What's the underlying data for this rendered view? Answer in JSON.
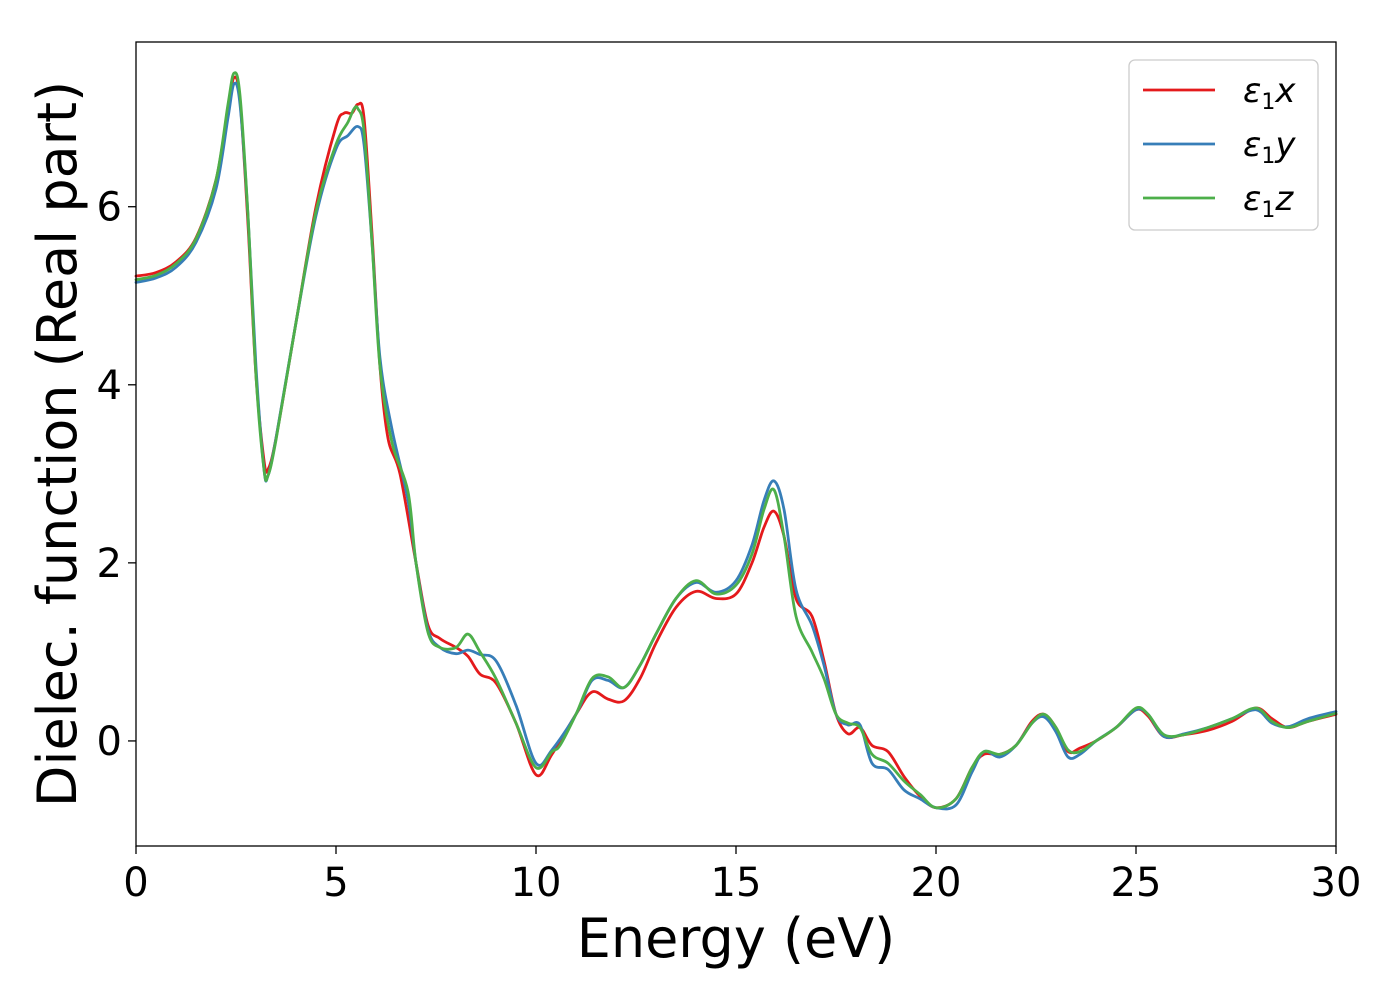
{
  "chart_data": {
    "type": "line",
    "title": "",
    "xlabel": "Energy (eV)",
    "ylabel": "Dielec. function (Real part)",
    "xlim": [
      0,
      30
    ],
    "ylim": [
      -1.18,
      7.85
    ],
    "xticks": [
      0,
      5,
      10,
      15,
      20,
      25,
      30
    ],
    "xtick_labels": [
      "0",
      "5",
      "10",
      "15",
      "20",
      "25",
      "30"
    ],
    "yticks": [
      0,
      2,
      4,
      6
    ],
    "ytick_labels": [
      "0",
      "2",
      "4",
      "6"
    ],
    "grid": false,
    "legend_position": "top-right",
    "series": [
      {
        "name": "ε1x",
        "legend_main": "ε",
        "legend_sub": "1",
        "legend_tail": "x",
        "color": "#e41a1c",
        "points": [
          [
            0,
            5.22
          ],
          [
            0.5,
            5.26
          ],
          [
            1.0,
            5.38
          ],
          [
            1.5,
            5.65
          ],
          [
            2.0,
            6.3
          ],
          [
            2.3,
            7.1
          ],
          [
            2.45,
            7.45
          ],
          [
            2.6,
            7.2
          ],
          [
            2.8,
            5.8
          ],
          [
            3.0,
            4.1
          ],
          [
            3.2,
            3.15
          ],
          [
            3.3,
            3.05
          ],
          [
            3.5,
            3.4
          ],
          [
            4.0,
            4.7
          ],
          [
            4.5,
            6.0
          ],
          [
            5.0,
            6.9
          ],
          [
            5.2,
            7.05
          ],
          [
            5.4,
            7.05
          ],
          [
            5.55,
            7.15
          ],
          [
            5.7,
            7.0
          ],
          [
            5.9,
            5.7
          ],
          [
            6.1,
            4.2
          ],
          [
            6.3,
            3.4
          ],
          [
            6.6,
            3.0
          ],
          [
            7.0,
            2.0
          ],
          [
            7.3,
            1.3
          ],
          [
            7.6,
            1.15
          ],
          [
            8.0,
            1.05
          ],
          [
            8.3,
            0.95
          ],
          [
            8.6,
            0.75
          ],
          [
            9.0,
            0.65
          ],
          [
            9.5,
            0.2
          ],
          [
            10.0,
            -0.38
          ],
          [
            10.4,
            -0.15
          ],
          [
            11.0,
            0.3
          ],
          [
            11.4,
            0.55
          ],
          [
            11.8,
            0.47
          ],
          [
            12.2,
            0.45
          ],
          [
            12.6,
            0.7
          ],
          [
            13.0,
            1.1
          ],
          [
            13.5,
            1.5
          ],
          [
            14.0,
            1.68
          ],
          [
            14.5,
            1.6
          ],
          [
            15.0,
            1.65
          ],
          [
            15.4,
            2.0
          ],
          [
            15.7,
            2.4
          ],
          [
            15.95,
            2.58
          ],
          [
            16.2,
            2.3
          ],
          [
            16.5,
            1.6
          ],
          [
            16.9,
            1.4
          ],
          [
            17.2,
            0.9
          ],
          [
            17.5,
            0.3
          ],
          [
            17.8,
            0.08
          ],
          [
            18.1,
            0.15
          ],
          [
            18.4,
            -0.05
          ],
          [
            18.8,
            -0.12
          ],
          [
            19.2,
            -0.4
          ],
          [
            19.6,
            -0.62
          ],
          [
            20.0,
            -0.75
          ],
          [
            20.5,
            -0.65
          ],
          [
            20.9,
            -0.3
          ],
          [
            21.2,
            -0.15
          ],
          [
            21.6,
            -0.15
          ],
          [
            22.0,
            -0.05
          ],
          [
            22.4,
            0.22
          ],
          [
            22.7,
            0.3
          ],
          [
            23.0,
            0.15
          ],
          [
            23.3,
            -0.12
          ],
          [
            23.6,
            -0.08
          ],
          [
            24.0,
            0.0
          ],
          [
            24.5,
            0.15
          ],
          [
            25.0,
            0.35
          ],
          [
            25.3,
            0.28
          ],
          [
            25.7,
            0.05
          ],
          [
            26.2,
            0.07
          ],
          [
            26.8,
            0.12
          ],
          [
            27.4,
            0.22
          ],
          [
            28.0,
            0.37
          ],
          [
            28.4,
            0.25
          ],
          [
            28.8,
            0.15
          ],
          [
            29.3,
            0.22
          ],
          [
            30.0,
            0.3
          ]
        ]
      },
      {
        "name": "ε1y",
        "legend_main": "ε",
        "legend_sub": "1",
        "legend_tail": "y",
        "color": "#377eb8",
        "points": [
          [
            0,
            5.15
          ],
          [
            0.5,
            5.2
          ],
          [
            1.0,
            5.32
          ],
          [
            1.5,
            5.6
          ],
          [
            2.0,
            6.2
          ],
          [
            2.3,
            7.0
          ],
          [
            2.45,
            7.38
          ],
          [
            2.6,
            7.15
          ],
          [
            2.8,
            5.9
          ],
          [
            3.0,
            4.2
          ],
          [
            3.2,
            3.05
          ],
          [
            3.3,
            2.98
          ],
          [
            3.5,
            3.4
          ],
          [
            4.0,
            4.7
          ],
          [
            4.5,
            5.9
          ],
          [
            5.0,
            6.65
          ],
          [
            5.3,
            6.8
          ],
          [
            5.55,
            6.9
          ],
          [
            5.7,
            6.7
          ],
          [
            5.9,
            5.6
          ],
          [
            6.1,
            4.3
          ],
          [
            6.4,
            3.5
          ],
          [
            6.8,
            2.7
          ],
          [
            7.0,
            2.0
          ],
          [
            7.3,
            1.25
          ],
          [
            7.6,
            1.05
          ],
          [
            8.0,
            0.98
          ],
          [
            8.3,
            1.02
          ],
          [
            8.6,
            0.97
          ],
          [
            9.0,
            0.9
          ],
          [
            9.5,
            0.4
          ],
          [
            10.0,
            -0.25
          ],
          [
            10.4,
            -0.1
          ],
          [
            11.0,
            0.3
          ],
          [
            11.4,
            0.68
          ],
          [
            11.8,
            0.68
          ],
          [
            12.2,
            0.6
          ],
          [
            12.6,
            0.85
          ],
          [
            13.0,
            1.2
          ],
          [
            13.5,
            1.6
          ],
          [
            14.0,
            1.78
          ],
          [
            14.5,
            1.67
          ],
          [
            15.0,
            1.8
          ],
          [
            15.4,
            2.2
          ],
          [
            15.7,
            2.7
          ],
          [
            15.95,
            2.92
          ],
          [
            16.2,
            2.6
          ],
          [
            16.5,
            1.7
          ],
          [
            16.9,
            1.3
          ],
          [
            17.2,
            0.85
          ],
          [
            17.5,
            0.3
          ],
          [
            17.8,
            0.18
          ],
          [
            18.1,
            0.18
          ],
          [
            18.4,
            -0.25
          ],
          [
            18.8,
            -0.32
          ],
          [
            19.2,
            -0.55
          ],
          [
            19.6,
            -0.65
          ],
          [
            20.0,
            -0.75
          ],
          [
            20.5,
            -0.72
          ],
          [
            20.9,
            -0.35
          ],
          [
            21.2,
            -0.12
          ],
          [
            21.6,
            -0.18
          ],
          [
            22.0,
            -0.05
          ],
          [
            22.4,
            0.2
          ],
          [
            22.7,
            0.27
          ],
          [
            23.0,
            0.1
          ],
          [
            23.3,
            -0.18
          ],
          [
            23.6,
            -0.15
          ],
          [
            24.0,
            0.0
          ],
          [
            24.5,
            0.15
          ],
          [
            25.0,
            0.35
          ],
          [
            25.3,
            0.3
          ],
          [
            25.7,
            0.05
          ],
          [
            26.2,
            0.08
          ],
          [
            26.8,
            0.15
          ],
          [
            27.4,
            0.25
          ],
          [
            28.0,
            0.35
          ],
          [
            28.4,
            0.2
          ],
          [
            28.8,
            0.16
          ],
          [
            29.3,
            0.25
          ],
          [
            30.0,
            0.33
          ]
        ]
      },
      {
        "name": "ε1z",
        "legend_main": "ε",
        "legend_sub": "1",
        "legend_tail": "z",
        "color": "#4daf4a",
        "points": [
          [
            0,
            5.18
          ],
          [
            0.5,
            5.23
          ],
          [
            1.0,
            5.36
          ],
          [
            1.5,
            5.64
          ],
          [
            2.0,
            6.3
          ],
          [
            2.3,
            7.15
          ],
          [
            2.45,
            7.5
          ],
          [
            2.6,
            7.25
          ],
          [
            2.8,
            5.9
          ],
          [
            3.0,
            4.1
          ],
          [
            3.2,
            3.05
          ],
          [
            3.3,
            2.98
          ],
          [
            3.5,
            3.38
          ],
          [
            4.0,
            4.7
          ],
          [
            4.5,
            5.95
          ],
          [
            5.0,
            6.7
          ],
          [
            5.3,
            6.95
          ],
          [
            5.45,
            7.1
          ],
          [
            5.55,
            7.1
          ],
          [
            5.7,
            6.85
          ],
          [
            5.9,
            5.6
          ],
          [
            6.1,
            4.2
          ],
          [
            6.4,
            3.35
          ],
          [
            6.8,
            2.8
          ],
          [
            7.0,
            2.0
          ],
          [
            7.3,
            1.22
          ],
          [
            7.6,
            1.05
          ],
          [
            8.0,
            1.05
          ],
          [
            8.3,
            1.2
          ],
          [
            8.6,
            1.0
          ],
          [
            9.0,
            0.7
          ],
          [
            9.5,
            0.2
          ],
          [
            10.0,
            -0.3
          ],
          [
            10.4,
            -0.12
          ],
          [
            10.6,
            -0.05
          ],
          [
            11.0,
            0.3
          ],
          [
            11.4,
            0.7
          ],
          [
            11.8,
            0.72
          ],
          [
            12.2,
            0.6
          ],
          [
            12.6,
            0.85
          ],
          [
            13.0,
            1.2
          ],
          [
            13.5,
            1.6
          ],
          [
            14.0,
            1.8
          ],
          [
            14.5,
            1.65
          ],
          [
            15.0,
            1.75
          ],
          [
            15.4,
            2.1
          ],
          [
            15.7,
            2.6
          ],
          [
            15.95,
            2.82
          ],
          [
            16.2,
            2.3
          ],
          [
            16.5,
            1.4
          ],
          [
            16.9,
            1.0
          ],
          [
            17.2,
            0.7
          ],
          [
            17.5,
            0.3
          ],
          [
            17.8,
            0.2
          ],
          [
            18.1,
            0.15
          ],
          [
            18.4,
            -0.15
          ],
          [
            18.8,
            -0.25
          ],
          [
            19.2,
            -0.45
          ],
          [
            19.6,
            -0.6
          ],
          [
            20.0,
            -0.75
          ],
          [
            20.5,
            -0.65
          ],
          [
            20.9,
            -0.3
          ],
          [
            21.2,
            -0.12
          ],
          [
            21.6,
            -0.15
          ],
          [
            22.0,
            -0.05
          ],
          [
            22.4,
            0.2
          ],
          [
            22.7,
            0.3
          ],
          [
            23.0,
            0.15
          ],
          [
            23.3,
            -0.1
          ],
          [
            23.6,
            -0.12
          ],
          [
            24.0,
            0.0
          ],
          [
            24.5,
            0.15
          ],
          [
            25.0,
            0.37
          ],
          [
            25.3,
            0.3
          ],
          [
            25.7,
            0.07
          ],
          [
            26.2,
            0.07
          ],
          [
            26.8,
            0.15
          ],
          [
            27.4,
            0.25
          ],
          [
            28.0,
            0.37
          ],
          [
            28.4,
            0.22
          ],
          [
            28.8,
            0.15
          ],
          [
            29.3,
            0.22
          ],
          [
            30.0,
            0.31
          ]
        ]
      }
    ]
  }
}
